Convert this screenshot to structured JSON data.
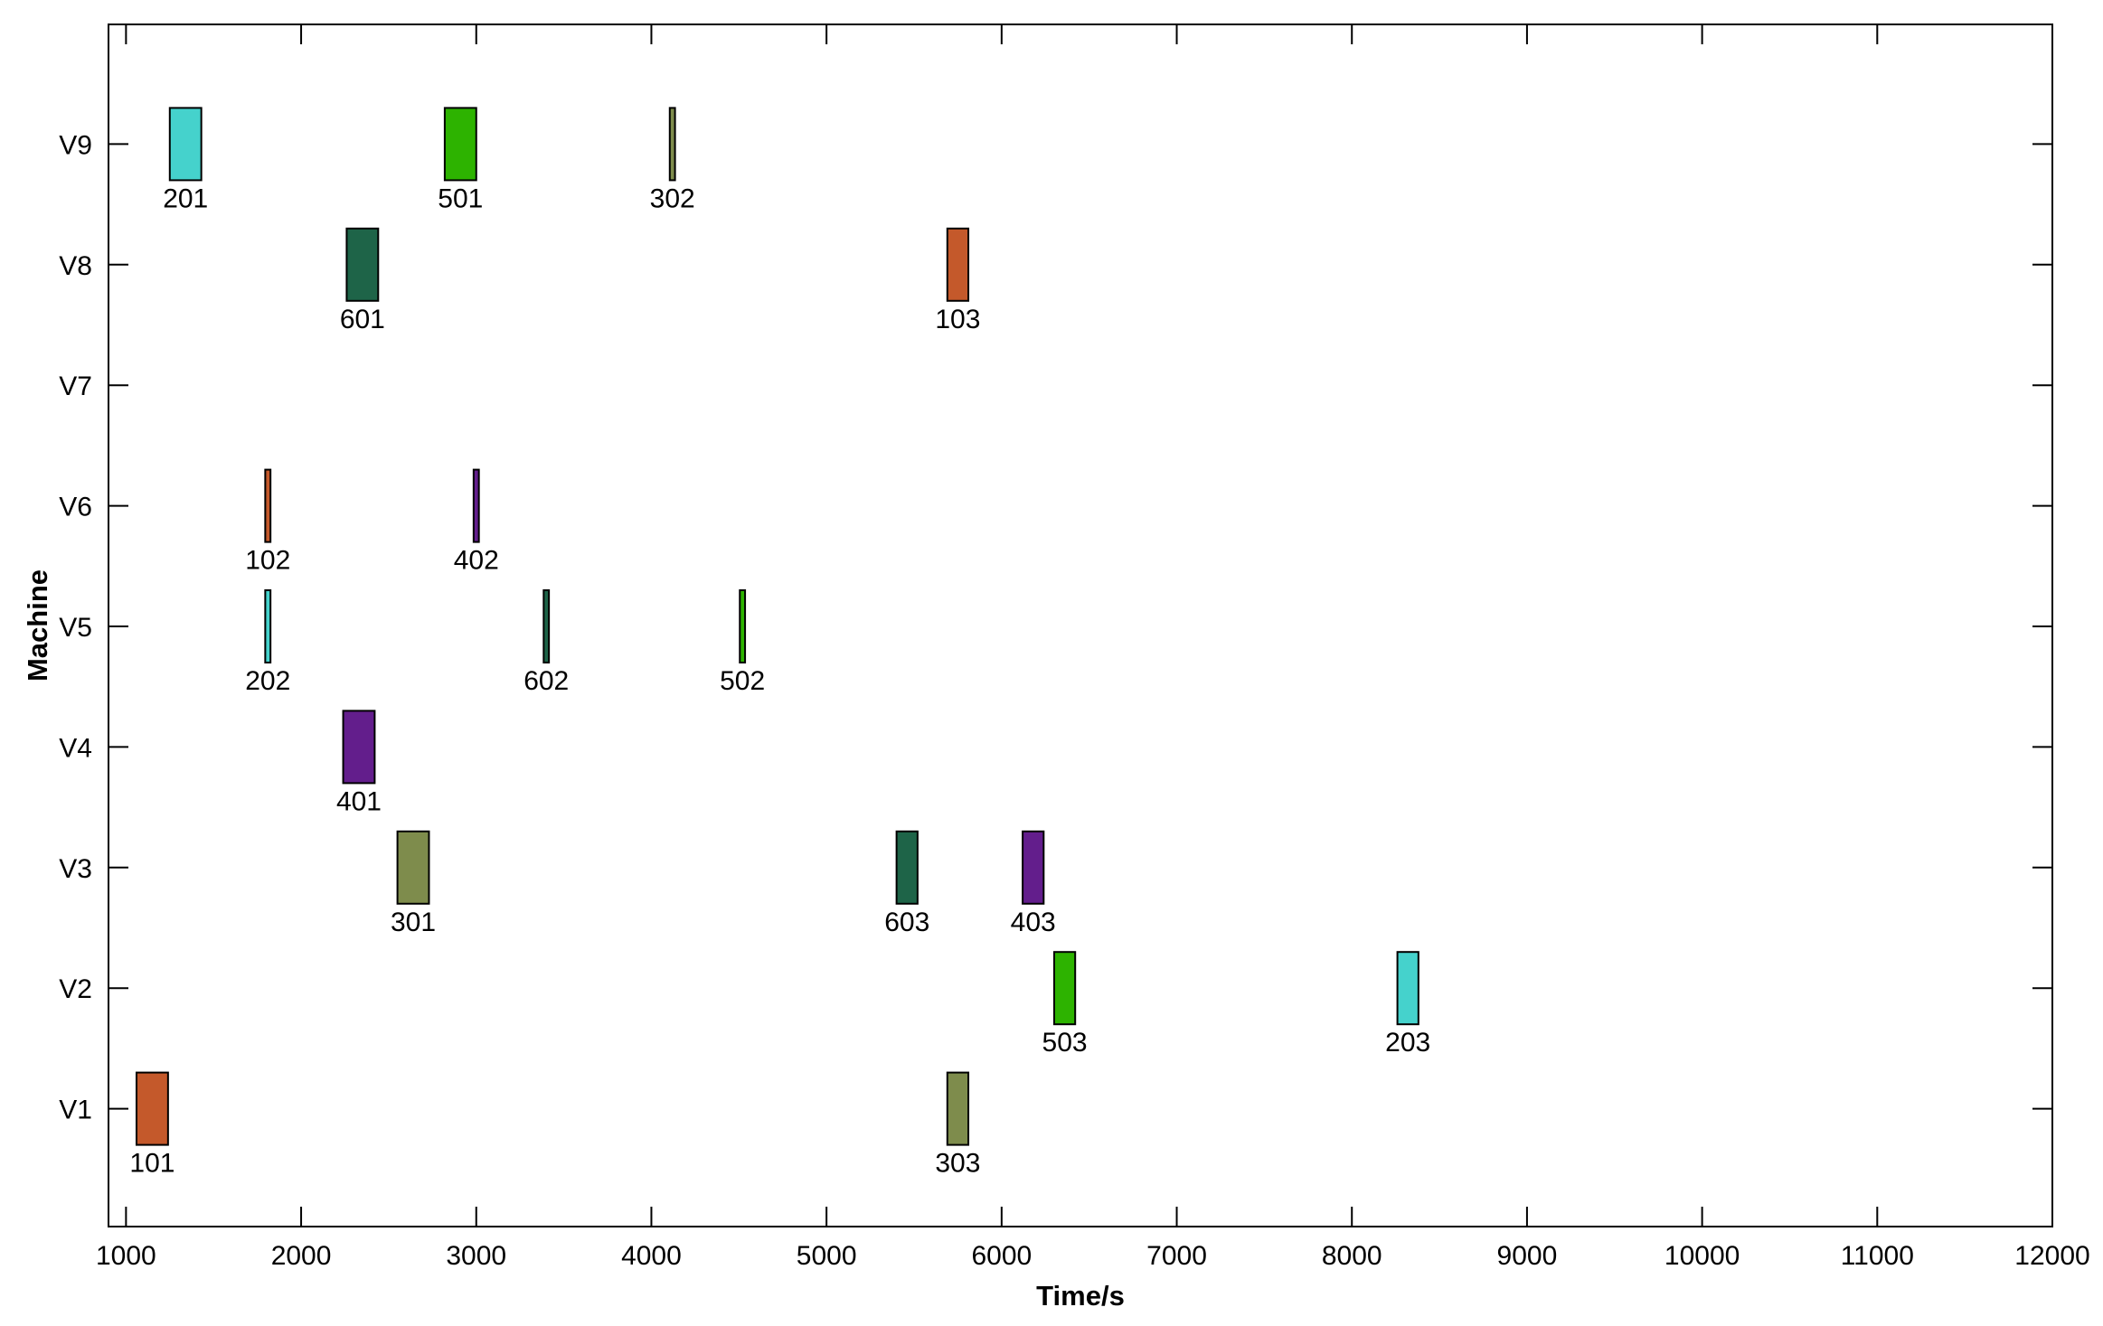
{
  "chart_data": {
    "type": "gantt",
    "title": "",
    "xlabel": "Time/s",
    "ylabel": "Machine",
    "xlim": [
      900,
      12000
    ],
    "xticks": [
      1000,
      2000,
      3000,
      4000,
      5000,
      6000,
      7000,
      8000,
      9000,
      10000,
      11000,
      12000
    ],
    "xtick_labels": [
      "1000",
      "2000",
      "3000",
      "4000",
      "5000",
      "6000",
      "7000",
      "8000",
      "9000",
      "10000",
      "11000",
      "12000"
    ],
    "machines": [
      "V1",
      "V2",
      "V3",
      "V4",
      "V5",
      "V6",
      "V7",
      "V8",
      "V9"
    ],
    "grid": false,
    "tasks": [
      {
        "id": "101",
        "machine": "V1",
        "start": 1060,
        "end": 1240,
        "color": "#C4592B"
      },
      {
        "id": "303",
        "machine": "V1",
        "start": 5690,
        "end": 5810,
        "color": "#7E8C4C"
      },
      {
        "id": "503",
        "machine": "V2",
        "start": 6300,
        "end": 6420,
        "color": "#2DB300"
      },
      {
        "id": "203",
        "machine": "V2",
        "start": 8260,
        "end": 8380,
        "color": "#45D2CC"
      },
      {
        "id": "301",
        "machine": "V3",
        "start": 2550,
        "end": 2730,
        "color": "#7E8C4C"
      },
      {
        "id": "603",
        "machine": "V3",
        "start": 5400,
        "end": 5520,
        "color": "#1E6448"
      },
      {
        "id": "403",
        "machine": "V3",
        "start": 6120,
        "end": 6240,
        "color": "#631E8C"
      },
      {
        "id": "401",
        "machine": "V4",
        "start": 2240,
        "end": 2420,
        "color": "#631E8C"
      },
      {
        "id": "202",
        "machine": "V5",
        "start": 1795,
        "end": 1825,
        "color": "#45D2CC"
      },
      {
        "id": "602",
        "machine": "V5",
        "start": 3385,
        "end": 3415,
        "color": "#1E6448"
      },
      {
        "id": "502",
        "machine": "V5",
        "start": 4505,
        "end": 4535,
        "color": "#2DB300"
      },
      {
        "id": "102",
        "machine": "V6",
        "start": 1795,
        "end": 1825,
        "color": "#C4592B"
      },
      {
        "id": "402",
        "machine": "V6",
        "start": 2985,
        "end": 3015,
        "color": "#631E8C"
      },
      {
        "id": "601",
        "machine": "V8",
        "start": 2260,
        "end": 2440,
        "color": "#1E6448"
      },
      {
        "id": "103",
        "machine": "V8",
        "start": 5690,
        "end": 5810,
        "color": "#C4592B"
      },
      {
        "id": "201",
        "machine": "V9",
        "start": 1250,
        "end": 1430,
        "color": "#45D2CC"
      },
      {
        "id": "501",
        "machine": "V9",
        "start": 2820,
        "end": 3000,
        "color": "#2DB300"
      },
      {
        "id": "302",
        "machine": "V9",
        "start": 4105,
        "end": 4135,
        "color": "#7E8C4C"
      }
    ]
  }
}
